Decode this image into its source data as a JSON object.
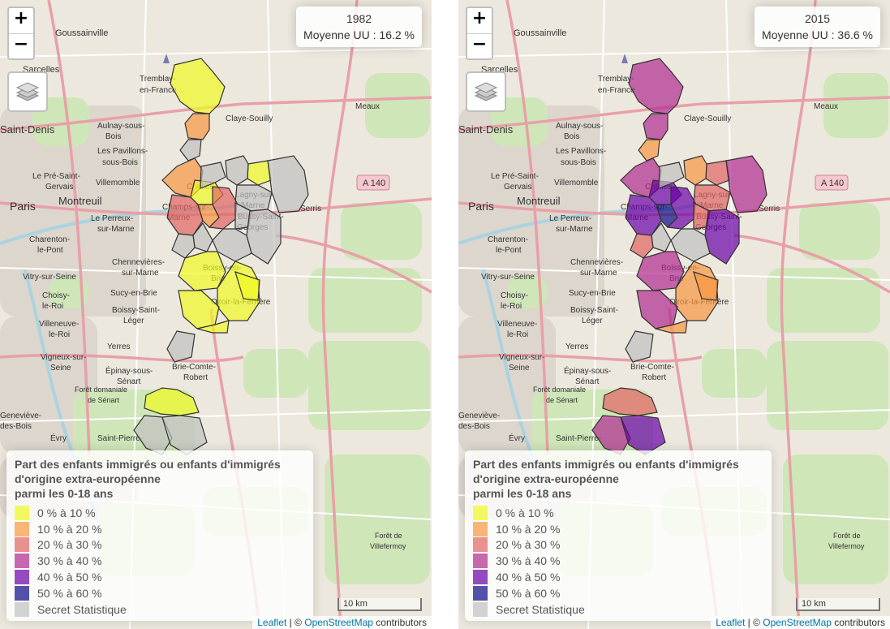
{
  "maps": [
    {
      "year_label": "1982",
      "mean_label": "Moyenne UU : 16.2 %",
      "zones": [
        {
          "id": "tremblay-n",
          "class": "0-10"
        },
        {
          "id": "villepinte",
          "class": "10-20"
        },
        {
          "id": "sevran",
          "class": "secret"
        },
        {
          "id": "chelles-w",
          "class": "10-20"
        },
        {
          "id": "chelles-c",
          "class": "0-10"
        },
        {
          "id": "chelles-n",
          "class": "secret"
        },
        {
          "id": "lagny-n",
          "class": "0-10"
        },
        {
          "id": "lagny-s",
          "class": "secret"
        },
        {
          "id": "east-1",
          "class": "secret"
        },
        {
          "id": "east-2",
          "class": "secret"
        },
        {
          "id": "champs",
          "class": "20-30"
        },
        {
          "id": "noisiel",
          "class": "10-20"
        },
        {
          "id": "torcy",
          "class": "20-30"
        },
        {
          "id": "collegien",
          "class": "secret"
        },
        {
          "id": "bussy-e",
          "class": "secret"
        },
        {
          "id": "croissy",
          "class": "secret"
        },
        {
          "id": "emerainville",
          "class": "secret"
        },
        {
          "id": "pontault",
          "class": "secret"
        },
        {
          "id": "roissy",
          "class": "0-10"
        },
        {
          "id": "ozoir",
          "class": "0-10"
        },
        {
          "id": "ozoir-e",
          "class": "0-10"
        },
        {
          "id": "lesigny",
          "class": "0-10"
        },
        {
          "id": "chevry",
          "class": "0-10"
        },
        {
          "id": "brie",
          "class": "secret"
        },
        {
          "id": "senart-n",
          "class": "0-10"
        },
        {
          "id": "senart-w",
          "class": "secret"
        },
        {
          "id": "senart-s",
          "class": "secret"
        }
      ]
    },
    {
      "year_label": "2015",
      "mean_label": "Moyenne UU : 36.6 %",
      "zones": [
        {
          "id": "tremblay-n",
          "class": "30-40"
        },
        {
          "id": "villepinte",
          "class": "30-40"
        },
        {
          "id": "sevran",
          "class": "10-20"
        },
        {
          "id": "chelles-w",
          "class": "30-40"
        },
        {
          "id": "chelles-c",
          "class": "40-50"
        },
        {
          "id": "chelles-n",
          "class": "secret"
        },
        {
          "id": "lagny-n",
          "class": "20-30"
        },
        {
          "id": "lagny-s",
          "class": "20-30"
        },
        {
          "id": "east-1",
          "class": "10-20"
        },
        {
          "id": "east-2",
          "class": "30-40"
        },
        {
          "id": "champs",
          "class": "40-50"
        },
        {
          "id": "noisiel",
          "class": "50-60"
        },
        {
          "id": "torcy",
          "class": "40-50"
        },
        {
          "id": "collegien",
          "class": "20-30"
        },
        {
          "id": "bussy-e",
          "class": "40-50"
        },
        {
          "id": "croissy",
          "class": "secret"
        },
        {
          "id": "emerainville",
          "class": "secret"
        },
        {
          "id": "pontault",
          "class": "20-30"
        },
        {
          "id": "roissy",
          "class": "30-40"
        },
        {
          "id": "ozoir",
          "class": "10-20"
        },
        {
          "id": "ozoir-e",
          "class": "10-20"
        },
        {
          "id": "lesigny",
          "class": "30-40"
        },
        {
          "id": "chevry",
          "class": "10-20"
        },
        {
          "id": "brie",
          "class": "secret"
        },
        {
          "id": "senart-n",
          "class": "20-30"
        },
        {
          "id": "senart-w",
          "class": "30-40"
        },
        {
          "id": "senart-s",
          "class": "40-50"
        }
      ]
    }
  ],
  "legend": {
    "title_lines": [
      "Part des enfants immigrés ou enfants d'immigrés",
      "d'origine extra-européenne",
      "parmi les 0-18 ans"
    ],
    "items": [
      {
        "label": "0 % à 10 %",
        "class": "0-10",
        "color": "#f0f921"
      },
      {
        "label": "10 % à 20 %",
        "class": "10-20",
        "color": "#f89540"
      },
      {
        "label": "20 % à 30 %",
        "class": "20-30",
        "color": "#e16462"
      },
      {
        "label": "30 % à 40 %",
        "class": "30-40",
        "color": "#b12a90"
      },
      {
        "label": "40 % à 50 %",
        "class": "40-50",
        "color": "#6a00a8"
      },
      {
        "label": "50 % à 60 %",
        "class": "50-60",
        "color": "#0d0887"
      },
      {
        "label": "Secret Statistique",
        "class": "secret",
        "color": "#c0c0c0"
      }
    ]
  },
  "controls": {
    "zoom_in": "+",
    "zoom_out": "−"
  },
  "scale": {
    "label": "10 km"
  },
  "attribution": {
    "leaflet": "Leaflet",
    "sep": " | © ",
    "osm": "OpenStreetMap",
    "suffix": " contributors"
  },
  "place_labels": [
    "Goussainville",
    "Sarcelles",
    "Tremblay-en-France",
    "Saint-Denis",
    "Aulnay-sous-Bois",
    "Claye-Souilly",
    "Meaux",
    "Les Pavillons-sous-Bois",
    "Le Pré-Saint-Gervais",
    "Villemomble",
    "Montreuil",
    "Paris",
    "Le Perreux-sur-Marne",
    "Charenton-le-Pont",
    "Chennevières-sur-Marne",
    "Vitry-sur-Seine",
    "Sucy-en-Brie",
    "Choisy-le-Roi",
    "Boissy-Saint-Léger",
    "Villeneuve-le-Roi",
    "Yerres",
    "Vigneux-sur-Seine",
    "Brie-Comte-Robert",
    "Épinay-sous-Sénart",
    "Forêt domaniale de Sénart",
    "Geneviève-des-Bois",
    "Évry",
    "Saint-Pierre-du-Perray",
    "Forêt de Villefermoy",
    "Chelles",
    "Champs-sur-Marne",
    "Lagny-sur-Marne",
    "Bussy-Saint-Georges",
    "Roissy-en-Brie",
    "Ozoir-la-Ferrière",
    "Torcy",
    "Serris",
    "A 140"
  ]
}
